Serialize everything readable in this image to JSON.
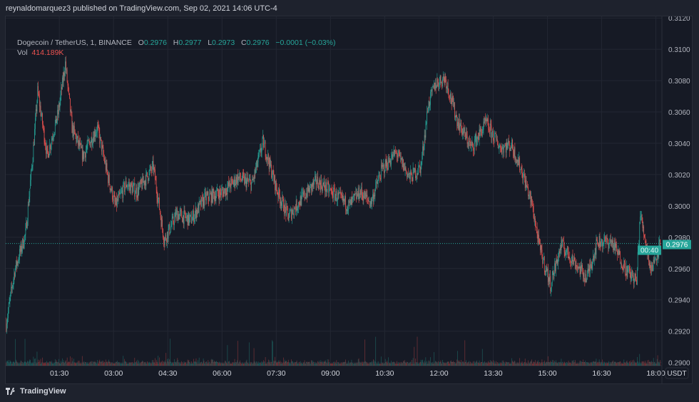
{
  "publisher_line": "reynaldomarquez3 published on TradingView.com, Sep 02, 2021 14:06 UTC-4",
  "legend": {
    "symbol": "Dogecoin / TetherUS, 1, BINANCE",
    "o_label": "O",
    "o": "0.2976",
    "h_label": "H",
    "h": "0.2977",
    "l_label": "L",
    "l": "0.2973",
    "c_label": "C",
    "c": "0.2976",
    "change": "−0.0001 (−0.03%)",
    "vol_label": "Vol",
    "vol": "414.189K"
  },
  "currency": "USDT",
  "last_price": {
    "price": "0.2976",
    "countdown": "00:40"
  },
  "footer_logo": "TradingView",
  "colors": {
    "up": "#26a69a",
    "down": "#ef5350",
    "background": "#161a25",
    "grid": "#232733"
  },
  "chart_data": {
    "type": "candlestick",
    "interval": "1 minute",
    "y_ticks": [
      "0.3120",
      "0.3100",
      "0.3080",
      "0.3060",
      "0.3040",
      "0.3020",
      "0.3000",
      "0.2980",
      "0.2960",
      "0.2940",
      "0.2920",
      "0.2900"
    ],
    "x_ticks": [
      "01:30",
      "03:00",
      "04:30",
      "06:00",
      "07:30",
      "09:00",
      "10:30",
      "12:00",
      "13:30",
      "15:00",
      "16:30",
      "18:00"
    ],
    "ylim": [
      0.2898,
      0.3121
    ],
    "xlim": [
      "00:01",
      "18:10"
    ],
    "grid": true,
    "price_path": [
      [
        "00:02",
        0.2925
      ],
      [
        "00:16",
        0.2959
      ],
      [
        "00:34",
        0.2982
      ],
      [
        "00:46",
        0.3032
      ],
      [
        "00:54",
        0.3073
      ],
      [
        "01:10",
        0.3032
      ],
      [
        "01:28",
        0.3059
      ],
      [
        "01:40",
        0.3091
      ],
      [
        "01:51",
        0.305
      ],
      [
        "02:09",
        0.3032
      ],
      [
        "02:33",
        0.305
      ],
      [
        "02:51",
        0.3018
      ],
      [
        "03:03",
        0.3
      ],
      [
        "03:21",
        0.3014
      ],
      [
        "03:39",
        0.3009
      ],
      [
        "04:06",
        0.3025
      ],
      [
        "04:24",
        0.2978
      ],
      [
        "04:45",
        0.2995
      ],
      [
        "05:08",
        0.2991
      ],
      [
        "05:32",
        0.3005
      ],
      [
        "06:02",
        0.3009
      ],
      [
        "06:26",
        0.3018
      ],
      [
        "06:50",
        0.3014
      ],
      [
        "07:08",
        0.3041
      ],
      [
        "07:32",
        0.3009
      ],
      [
        "07:50",
        0.2993
      ],
      [
        "08:13",
        0.3005
      ],
      [
        "08:37",
        0.3016
      ],
      [
        "09:01",
        0.3009
      ],
      [
        "09:31",
        0.3
      ],
      [
        "09:49",
        0.3009
      ],
      [
        "10:07",
        0.3002
      ],
      [
        "10:25",
        0.3023
      ],
      [
        "10:49",
        0.3034
      ],
      [
        "11:12",
        0.3018
      ],
      [
        "11:30",
        0.3025
      ],
      [
        "11:42",
        0.3064
      ],
      [
        "11:54",
        0.3078
      ],
      [
        "12:10",
        0.3082
      ],
      [
        "12:30",
        0.3055
      ],
      [
        "12:54",
        0.3037
      ],
      [
        "13:18",
        0.3053
      ],
      [
        "13:42",
        0.3037
      ],
      [
        "14:00",
        0.3039
      ],
      [
        "14:17",
        0.3023
      ],
      [
        "14:35",
        0.3
      ],
      [
        "14:47",
        0.2973
      ],
      [
        "15:05",
        0.295
      ],
      [
        "15:23",
        0.2975
      ],
      [
        "15:47",
        0.2963
      ],
      [
        "16:05",
        0.2954
      ],
      [
        "16:23",
        0.2977
      ],
      [
        "16:47",
        0.2977
      ],
      [
        "17:11",
        0.2959
      ],
      [
        "17:28",
        0.2952
      ],
      [
        "17:34",
        0.2995
      ],
      [
        "17:52",
        0.2959
      ],
      [
        "18:07",
        0.2976
      ]
    ]
  }
}
